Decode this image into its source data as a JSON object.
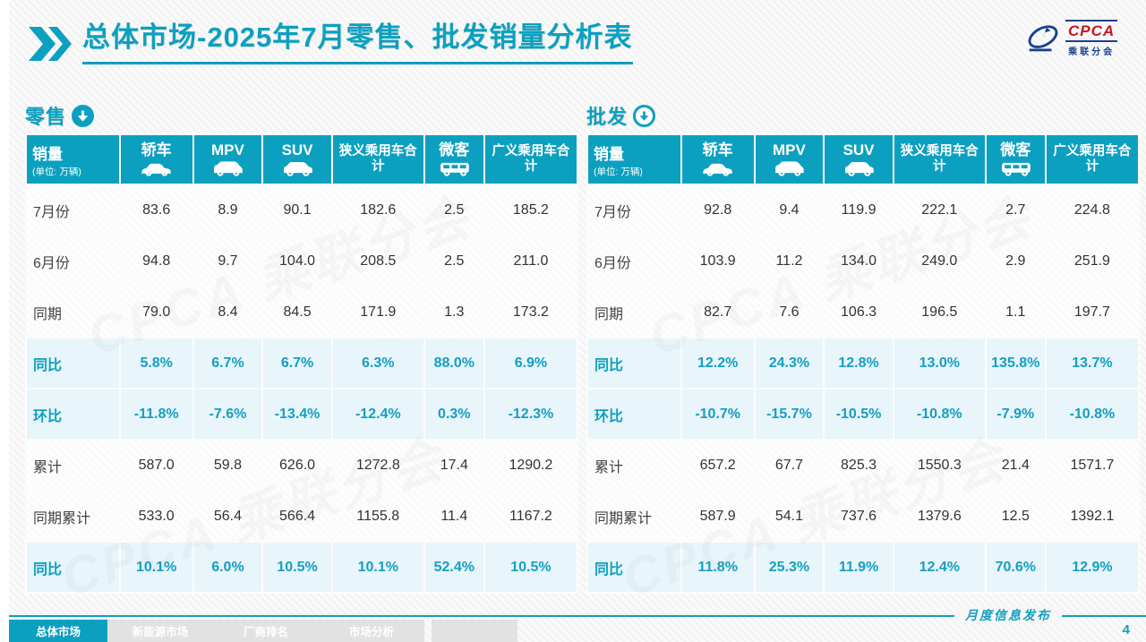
{
  "page": {
    "title": "总体市场-2025年7月零售、批发销量分析表",
    "logo": {
      "acronym": "CPCA",
      "name": "乘联分会"
    },
    "watermark": "CPCA 乘联分会",
    "footer": {
      "tabs": [
        {
          "label": "总体市场",
          "active": true
        },
        {
          "label": "新能源市场",
          "active": false
        },
        {
          "label": "厂商排名",
          "active": false
        },
        {
          "label": "市场分析",
          "active": false
        }
      ],
      "publication": "月度信息发布",
      "page_number": "4"
    }
  },
  "colors": {
    "accent_teal": "#0CA0C0",
    "highlight_row_bg": "#E7F4FA",
    "percent_text": "#149FC2",
    "logo_red": "#C8161E",
    "logo_blue": "#1B3F8F"
  },
  "tables": [
    {
      "section_label": "零售",
      "arrow_style": "filled",
      "header": {
        "label": "销量",
        "unit": "(单位: 万辆)",
        "columns": [
          {
            "label": "轿车",
            "icon": "sedan-car-icon"
          },
          {
            "label": "MPV",
            "icon": "mpv-car-icon"
          },
          {
            "label": "SUV",
            "icon": "suv-car-icon"
          },
          {
            "label": "狭义乘用车合计",
            "icon": null
          },
          {
            "label": "微客",
            "icon": "minibus-icon"
          },
          {
            "label": "广义乘用车合计",
            "icon": null
          }
        ]
      },
      "rows": [
        {
          "label": "7月份",
          "type": "normal",
          "values": [
            "83.6",
            "8.9",
            "90.1",
            "182.6",
            "2.5",
            "185.2"
          ]
        },
        {
          "label": "6月份",
          "type": "normal",
          "values": [
            "94.8",
            "9.7",
            "104.0",
            "208.5",
            "2.5",
            "211.0"
          ]
        },
        {
          "label": "同期",
          "type": "normal",
          "values": [
            "79.0",
            "8.4",
            "84.5",
            "171.9",
            "1.3",
            "173.2"
          ]
        },
        {
          "label": "同比",
          "type": "highlight",
          "values": [
            "5.8%",
            "6.7%",
            "6.7%",
            "6.3%",
            "88.0%",
            "6.9%"
          ]
        },
        {
          "label": "环比",
          "type": "highlight",
          "values": [
            "-11.8%",
            "-7.6%",
            "-13.4%",
            "-12.4%",
            "0.3%",
            "-12.3%"
          ]
        },
        {
          "label": "累计",
          "type": "normal",
          "values": [
            "587.0",
            "59.8",
            "626.0",
            "1272.8",
            "17.4",
            "1290.2"
          ]
        },
        {
          "label": "同期累计",
          "type": "normal",
          "values": [
            "533.0",
            "56.4",
            "566.4",
            "1155.8",
            "11.4",
            "1167.2"
          ]
        },
        {
          "label": "同比",
          "type": "highlight",
          "values": [
            "10.1%",
            "6.0%",
            "10.5%",
            "10.1%",
            "52.4%",
            "10.5%"
          ]
        }
      ]
    },
    {
      "section_label": "批发",
      "arrow_style": "outline",
      "header": {
        "label": "销量",
        "unit": "(单位: 万辆)",
        "columns": [
          {
            "label": "轿车",
            "icon": "sedan-car-icon"
          },
          {
            "label": "MPV",
            "icon": "mpv-car-icon"
          },
          {
            "label": "SUV",
            "icon": "suv-car-icon"
          },
          {
            "label": "狭义乘用车合计",
            "icon": null
          },
          {
            "label": "微客",
            "icon": "minibus-icon"
          },
          {
            "label": "广义乘用车合计",
            "icon": null
          }
        ]
      },
      "rows": [
        {
          "label": "7月份",
          "type": "normal",
          "values": [
            "92.8",
            "9.4",
            "119.9",
            "222.1",
            "2.7",
            "224.8"
          ]
        },
        {
          "label": "6月份",
          "type": "normal",
          "values": [
            "103.9",
            "11.2",
            "134.0",
            "249.0",
            "2.9",
            "251.9"
          ]
        },
        {
          "label": "同期",
          "type": "normal",
          "values": [
            "82.7",
            "7.6",
            "106.3",
            "196.5",
            "1.1",
            "197.7"
          ]
        },
        {
          "label": "同比",
          "type": "highlight",
          "values": [
            "12.2%",
            "24.3%",
            "12.8%",
            "13.0%",
            "135.8%",
            "13.7%"
          ]
        },
        {
          "label": "环比",
          "type": "highlight",
          "values": [
            "-10.7%",
            "-15.7%",
            "-10.5%",
            "-10.8%",
            "-7.9%",
            "-10.8%"
          ]
        },
        {
          "label": "累计",
          "type": "normal",
          "values": [
            "657.2",
            "67.7",
            "825.3",
            "1550.3",
            "21.4",
            "1571.7"
          ]
        },
        {
          "label": "同期累计",
          "type": "normal",
          "values": [
            "587.9",
            "54.1",
            "737.6",
            "1379.6",
            "12.5",
            "1392.1"
          ]
        },
        {
          "label": "同比",
          "type": "highlight",
          "values": [
            "11.8%",
            "25.3%",
            "11.9%",
            "12.4%",
            "70.6%",
            "12.9%"
          ]
        }
      ]
    }
  ]
}
